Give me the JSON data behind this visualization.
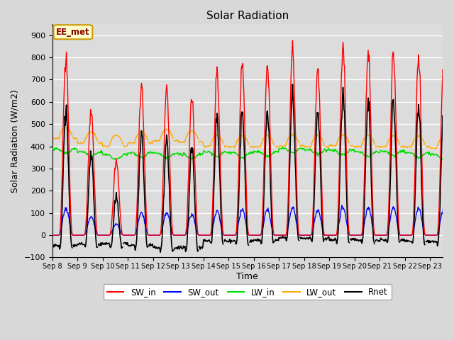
{
  "title": "Solar Radiation",
  "xlabel": "Time",
  "ylabel": "Solar Radiation (W/m2)",
  "ylim": [
    -100,
    950
  ],
  "yticks": [
    -100,
    0,
    100,
    200,
    300,
    400,
    500,
    600,
    700,
    800,
    900
  ],
  "x_tick_labels": [
    "Sep 8",
    "Sep 9",
    "Sep 10",
    "Sep 11",
    "Sep 12",
    "Sep 13",
    "Sep 14",
    "Sep 15",
    "Sep 16",
    "Sep 17",
    "Sep 18",
    "Sep 19",
    "Sep 20",
    "Sep 21",
    "Sep 22",
    "Sep 23"
  ],
  "annotation_text": "EE_met",
  "annotation_bg": "#ffffcc",
  "annotation_border": "#cc9900",
  "colors": {
    "SW_in": "#ff0000",
    "SW_out": "#0000ff",
    "LW_in": "#00dd00",
    "LW_out": "#ffaa00",
    "Rnet": "#000000"
  },
  "background_color": "#dcdcdc",
  "grid_color": "#ffffff",
  "n_days": 16,
  "dt_hours": 0.5,
  "sw_in_peaks": [
    800,
    560,
    340,
    670,
    660,
    620,
    725,
    760,
    765,
    830,
    750,
    860,
    820,
    820,
    795,
    785
  ],
  "lw_in_base": [
    388,
    375,
    362,
    370,
    368,
    365,
    375,
    370,
    375,
    390,
    385,
    383,
    375,
    378,
    370,
    362
  ],
  "lw_out_base": [
    435,
    415,
    400,
    415,
    425,
    420,
    400,
    398,
    398,
    402,
    398,
    402,
    398,
    398,
    397,
    392
  ]
}
